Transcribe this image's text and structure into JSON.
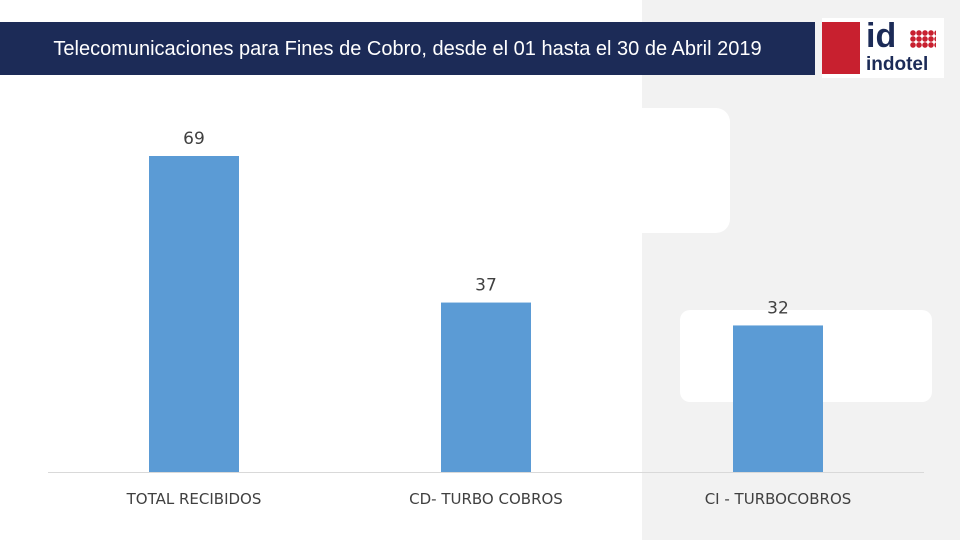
{
  "title": "Telecomunicaciones para Fines de Cobro, desde el 01 hasta el 30 de Abril 2019",
  "logo": {
    "top": "id",
    "bottom": "indotel"
  },
  "colors": {
    "bar": "#5b9bd5",
    "title_bg": "#1c2b57",
    "axis": "#d9d9d9",
    "brand_red": "#c8202f"
  },
  "chart_data": {
    "type": "bar",
    "categories": [
      "TOTAL RECIBIDOS",
      "CD- TURBO COBROS",
      "CI - TURBOCOBROS"
    ],
    "values": [
      69,
      37,
      32
    ],
    "ylim": [
      0,
      69
    ],
    "grid": false,
    "legend": "none",
    "data_labels": true
  }
}
